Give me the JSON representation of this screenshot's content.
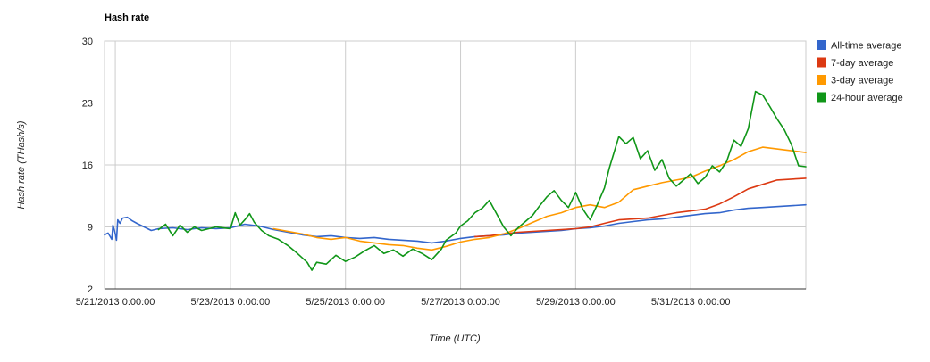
{
  "chart_data": {
    "type": "line",
    "title": "Hash rate",
    "xlabel": "Time (UTC)",
    "ylabel": "Hash rate (THash/s)",
    "ylim": [
      2,
      30
    ],
    "yticks": [
      2,
      9,
      16,
      23,
      30
    ],
    "xlim": [
      "2013-05-20T19:30",
      "2013-06-02T00:00"
    ],
    "xticks": [
      {
        "t": "2013-05-21T00:00",
        "label": "5/21/2013 0:00:00"
      },
      {
        "t": "2013-05-23T00:00",
        "label": "5/23/2013 0:00:00"
      },
      {
        "t": "2013-05-25T00:00",
        "label": "5/25/2013 0:00:00"
      },
      {
        "t": "2013-05-27T00:00",
        "label": "5/27/2013 0:00:00"
      },
      {
        "t": "2013-05-29T00:00",
        "label": "5/29/2013 0:00:00"
      },
      {
        "t": "2013-05-31T00:00",
        "label": "5/31/2013 0:00:00"
      }
    ],
    "grid": true,
    "legend_position": "right",
    "series": [
      {
        "name": "All-time average",
        "color": "#3366cc",
        "points": [
          [
            "2013-05-20T19:30",
            8.1
          ],
          [
            "2013-05-20T21:00",
            8.3
          ],
          [
            "2013-05-20T22:30",
            7.6
          ],
          [
            "2013-05-20T23:00",
            9.2
          ],
          [
            "2013-05-21T00:00",
            8.2
          ],
          [
            "2013-05-21T00:30",
            7.5
          ],
          [
            "2013-05-21T01:00",
            9.8
          ],
          [
            "2013-05-21T02:00",
            9.4
          ],
          [
            "2013-05-21T03:00",
            10.0
          ],
          [
            "2013-05-21T05:00",
            10.1
          ],
          [
            "2013-05-21T07:00",
            9.7
          ],
          [
            "2013-05-21T09:00",
            9.4
          ],
          [
            "2013-05-21T12:00",
            9.0
          ],
          [
            "2013-05-21T15:00",
            8.6
          ],
          [
            "2013-05-21T18:00",
            8.8
          ],
          [
            "2013-05-22T00:00",
            8.9
          ],
          [
            "2013-05-22T06:00",
            8.7
          ],
          [
            "2013-05-22T12:00",
            8.9
          ],
          [
            "2013-05-22T18:00",
            8.8
          ],
          [
            "2013-05-23T00:00",
            8.9
          ],
          [
            "2013-05-23T06:00",
            9.3
          ],
          [
            "2013-05-23T12:00",
            9.1
          ],
          [
            "2013-05-23T18:00",
            8.7
          ],
          [
            "2013-05-24T00:00",
            8.4
          ],
          [
            "2013-05-24T06:00",
            8.1
          ],
          [
            "2013-05-24T12:00",
            7.9
          ],
          [
            "2013-05-24T18:00",
            8.0
          ],
          [
            "2013-05-25T00:00",
            7.8
          ],
          [
            "2013-05-25T06:00",
            7.7
          ],
          [
            "2013-05-25T12:00",
            7.8
          ],
          [
            "2013-05-25T18:00",
            7.6
          ],
          [
            "2013-05-26T00:00",
            7.5
          ],
          [
            "2013-05-26T06:00",
            7.4
          ],
          [
            "2013-05-26T12:00",
            7.2
          ],
          [
            "2013-05-26T18:00",
            7.4
          ],
          [
            "2013-05-27T00:00",
            7.7
          ],
          [
            "2013-05-27T06:00",
            7.9
          ],
          [
            "2013-05-27T12:00",
            8.0
          ],
          [
            "2013-05-27T18:00",
            8.1
          ],
          [
            "2013-05-28T00:00",
            8.3
          ],
          [
            "2013-05-28T06:00",
            8.4
          ],
          [
            "2013-05-28T12:00",
            8.5
          ],
          [
            "2013-05-28T18:00",
            8.6
          ],
          [
            "2013-05-29T00:00",
            8.8
          ],
          [
            "2013-05-29T06:00",
            8.9
          ],
          [
            "2013-05-29T12:00",
            9.1
          ],
          [
            "2013-05-29T18:00",
            9.4
          ],
          [
            "2013-05-30T00:00",
            9.6
          ],
          [
            "2013-05-30T06:00",
            9.8
          ],
          [
            "2013-05-30T12:00",
            9.9
          ],
          [
            "2013-05-30T18:00",
            10.1
          ],
          [
            "2013-05-31T00:00",
            10.3
          ],
          [
            "2013-05-31T06:00",
            10.5
          ],
          [
            "2013-05-31T12:00",
            10.6
          ],
          [
            "2013-05-31T18:00",
            10.9
          ],
          [
            "2013-06-01T00:00",
            11.1
          ],
          [
            "2013-06-01T06:00",
            11.2
          ],
          [
            "2013-06-01T12:00",
            11.3
          ],
          [
            "2013-06-01T18:00",
            11.4
          ],
          [
            "2013-06-02T00:00",
            11.5
          ]
        ]
      },
      {
        "name": "7-day average",
        "color": "#dc3912",
        "points": [
          [
            "2013-05-27T06:00",
            7.9
          ],
          [
            "2013-05-27T12:00",
            8.0
          ],
          [
            "2013-05-27T18:00",
            8.2
          ],
          [
            "2013-05-28T00:00",
            8.4
          ],
          [
            "2013-05-28T06:00",
            8.5
          ],
          [
            "2013-05-28T12:00",
            8.6
          ],
          [
            "2013-05-28T18:00",
            8.7
          ],
          [
            "2013-05-29T00:00",
            8.8
          ],
          [
            "2013-05-29T06:00",
            9.0
          ],
          [
            "2013-05-29T12:00",
            9.4
          ],
          [
            "2013-05-29T18:00",
            9.8
          ],
          [
            "2013-05-30T00:00",
            9.9
          ],
          [
            "2013-05-30T06:00",
            10.0
          ],
          [
            "2013-05-30T12:00",
            10.3
          ],
          [
            "2013-05-30T18:00",
            10.6
          ],
          [
            "2013-05-31T00:00",
            10.8
          ],
          [
            "2013-05-31T06:00",
            11.0
          ],
          [
            "2013-05-31T12:00",
            11.6
          ],
          [
            "2013-05-31T18:00",
            12.4
          ],
          [
            "2013-06-01T00:00",
            13.3
          ],
          [
            "2013-06-01T06:00",
            13.8
          ],
          [
            "2013-06-01T12:00",
            14.3
          ],
          [
            "2013-06-01T18:00",
            14.4
          ],
          [
            "2013-06-02T00:00",
            14.5
          ]
        ]
      },
      {
        "name": "3-day average",
        "color": "#ff9900",
        "points": [
          [
            "2013-05-23T18:00",
            8.8
          ],
          [
            "2013-05-24T00:00",
            8.5
          ],
          [
            "2013-05-24T06:00",
            8.2
          ],
          [
            "2013-05-24T12:00",
            7.8
          ],
          [
            "2013-05-24T18:00",
            7.6
          ],
          [
            "2013-05-25T00:00",
            7.8
          ],
          [
            "2013-05-25T06:00",
            7.4
          ],
          [
            "2013-05-25T12:00",
            7.2
          ],
          [
            "2013-05-25T18:00",
            7.0
          ],
          [
            "2013-05-26T00:00",
            6.9
          ],
          [
            "2013-05-26T06:00",
            6.6
          ],
          [
            "2013-05-26T12:00",
            6.4
          ],
          [
            "2013-05-26T18:00",
            6.8
          ],
          [
            "2013-05-27T00:00",
            7.3
          ],
          [
            "2013-05-27T06:00",
            7.6
          ],
          [
            "2013-05-27T12:00",
            7.8
          ],
          [
            "2013-05-27T18:00",
            8.2
          ],
          [
            "2013-05-28T00:00",
            8.8
          ],
          [
            "2013-05-28T06:00",
            9.5
          ],
          [
            "2013-05-28T12:00",
            10.2
          ],
          [
            "2013-05-28T18:00",
            10.6
          ],
          [
            "2013-05-29T00:00",
            11.2
          ],
          [
            "2013-05-29T06:00",
            11.5
          ],
          [
            "2013-05-29T12:00",
            11.2
          ],
          [
            "2013-05-29T18:00",
            11.8
          ],
          [
            "2013-05-30T00:00",
            13.2
          ],
          [
            "2013-05-30T06:00",
            13.6
          ],
          [
            "2013-05-30T12:00",
            14.0
          ],
          [
            "2013-05-30T18:00",
            14.3
          ],
          [
            "2013-05-31T00:00",
            14.6
          ],
          [
            "2013-05-31T06:00",
            15.3
          ],
          [
            "2013-05-31T12:00",
            15.9
          ],
          [
            "2013-05-31T18:00",
            16.6
          ],
          [
            "2013-06-01T00:00",
            17.5
          ],
          [
            "2013-06-01T06:00",
            18.0
          ],
          [
            "2013-06-01T12:00",
            17.8
          ],
          [
            "2013-06-01T18:00",
            17.6
          ],
          [
            "2013-06-02T00:00",
            17.4
          ]
        ]
      },
      {
        "name": "24-hour average",
        "color": "#109618",
        "points": [
          [
            "2013-05-21T18:00",
            8.7
          ],
          [
            "2013-05-21T21:00",
            9.3
          ],
          [
            "2013-05-22T00:00",
            8.0
          ],
          [
            "2013-05-22T03:00",
            9.2
          ],
          [
            "2013-05-22T06:00",
            8.4
          ],
          [
            "2013-05-22T09:00",
            9.0
          ],
          [
            "2013-05-22T12:00",
            8.6
          ],
          [
            "2013-05-22T18:00",
            9.0
          ],
          [
            "2013-05-23T00:00",
            8.8
          ],
          [
            "2013-05-23T02:00",
            10.6
          ],
          [
            "2013-05-23T04:00",
            9.2
          ],
          [
            "2013-05-23T06:00",
            9.8
          ],
          [
            "2013-05-23T08:00",
            10.5
          ],
          [
            "2013-05-23T10:00",
            9.5
          ],
          [
            "2013-05-23T13:00",
            8.6
          ],
          [
            "2013-05-23T16:00",
            8.0
          ],
          [
            "2013-05-23T20:00",
            7.6
          ],
          [
            "2013-05-24T00:00",
            6.9
          ],
          [
            "2013-05-24T04:00",
            6.0
          ],
          [
            "2013-05-24T08:00",
            5.0
          ],
          [
            "2013-05-24T10:00",
            4.1
          ],
          [
            "2013-05-24T12:00",
            5.0
          ],
          [
            "2013-05-24T16:00",
            4.8
          ],
          [
            "2013-05-24T20:00",
            5.8
          ],
          [
            "2013-05-25T00:00",
            5.1
          ],
          [
            "2013-05-25T04:00",
            5.6
          ],
          [
            "2013-05-25T08:00",
            6.3
          ],
          [
            "2013-05-25T12:00",
            6.9
          ],
          [
            "2013-05-25T16:00",
            6.0
          ],
          [
            "2013-05-25T20:00",
            6.4
          ],
          [
            "2013-05-26T00:00",
            5.7
          ],
          [
            "2013-05-26T04:00",
            6.5
          ],
          [
            "2013-05-26T08:00",
            6.0
          ],
          [
            "2013-05-26T12:00",
            5.3
          ],
          [
            "2013-05-26T16:00",
            6.5
          ],
          [
            "2013-05-26T18:00",
            7.5
          ],
          [
            "2013-05-26T22:00",
            8.3
          ],
          [
            "2013-05-27T00:00",
            9.1
          ],
          [
            "2013-05-27T03:00",
            9.7
          ],
          [
            "2013-05-27T06:00",
            10.6
          ],
          [
            "2013-05-27T09:00",
            11.1
          ],
          [
            "2013-05-27T12:00",
            12.0
          ],
          [
            "2013-05-27T15:00",
            10.5
          ],
          [
            "2013-05-27T18:00",
            9.0
          ],
          [
            "2013-05-27T21:00",
            8.0
          ],
          [
            "2013-05-28T00:00",
            8.9
          ],
          [
            "2013-05-28T03:00",
            9.6
          ],
          [
            "2013-05-28T06:00",
            10.3
          ],
          [
            "2013-05-28T09:00",
            11.4
          ],
          [
            "2013-05-28T12:00",
            12.4
          ],
          [
            "2013-05-28T15:00",
            13.1
          ],
          [
            "2013-05-28T18:00",
            12.0
          ],
          [
            "2013-05-28T21:00",
            11.2
          ],
          [
            "2013-05-29T00:00",
            12.9
          ],
          [
            "2013-05-29T03:00",
            11.0
          ],
          [
            "2013-05-29T06:00",
            9.8
          ],
          [
            "2013-05-29T09:00",
            11.5
          ],
          [
            "2013-05-29T12:00",
            13.4
          ],
          [
            "2013-05-29T14:00",
            15.6
          ],
          [
            "2013-05-29T16:00",
            17.4
          ],
          [
            "2013-05-29T18:00",
            19.2
          ],
          [
            "2013-05-29T21:00",
            18.4
          ],
          [
            "2013-05-30T00:00",
            19.1
          ],
          [
            "2013-05-30T03:00",
            16.7
          ],
          [
            "2013-05-30T06:00",
            17.6
          ],
          [
            "2013-05-30T09:00",
            15.4
          ],
          [
            "2013-05-30T12:00",
            16.6
          ],
          [
            "2013-05-30T15:00",
            14.5
          ],
          [
            "2013-05-30T18:00",
            13.6
          ],
          [
            "2013-05-31T00:00",
            15.0
          ],
          [
            "2013-05-31T03:00",
            13.9
          ],
          [
            "2013-05-31T06:00",
            14.6
          ],
          [
            "2013-05-31T09:00",
            15.9
          ],
          [
            "2013-05-31T12:00",
            15.2
          ],
          [
            "2013-05-31T15:00",
            16.4
          ],
          [
            "2013-05-31T18:00",
            18.8
          ],
          [
            "2013-05-31T21:00",
            18.1
          ],
          [
            "2013-06-01T00:00",
            20.1
          ],
          [
            "2013-06-01T03:00",
            24.3
          ],
          [
            "2013-06-01T06:00",
            23.9
          ],
          [
            "2013-06-01T09:00",
            22.6
          ],
          [
            "2013-06-01T12:00",
            21.2
          ],
          [
            "2013-06-01T15:00",
            20.0
          ],
          [
            "2013-06-01T18:00",
            18.3
          ],
          [
            "2013-06-01T21:00",
            15.9
          ],
          [
            "2013-06-02T00:00",
            15.8
          ]
        ]
      }
    ]
  }
}
